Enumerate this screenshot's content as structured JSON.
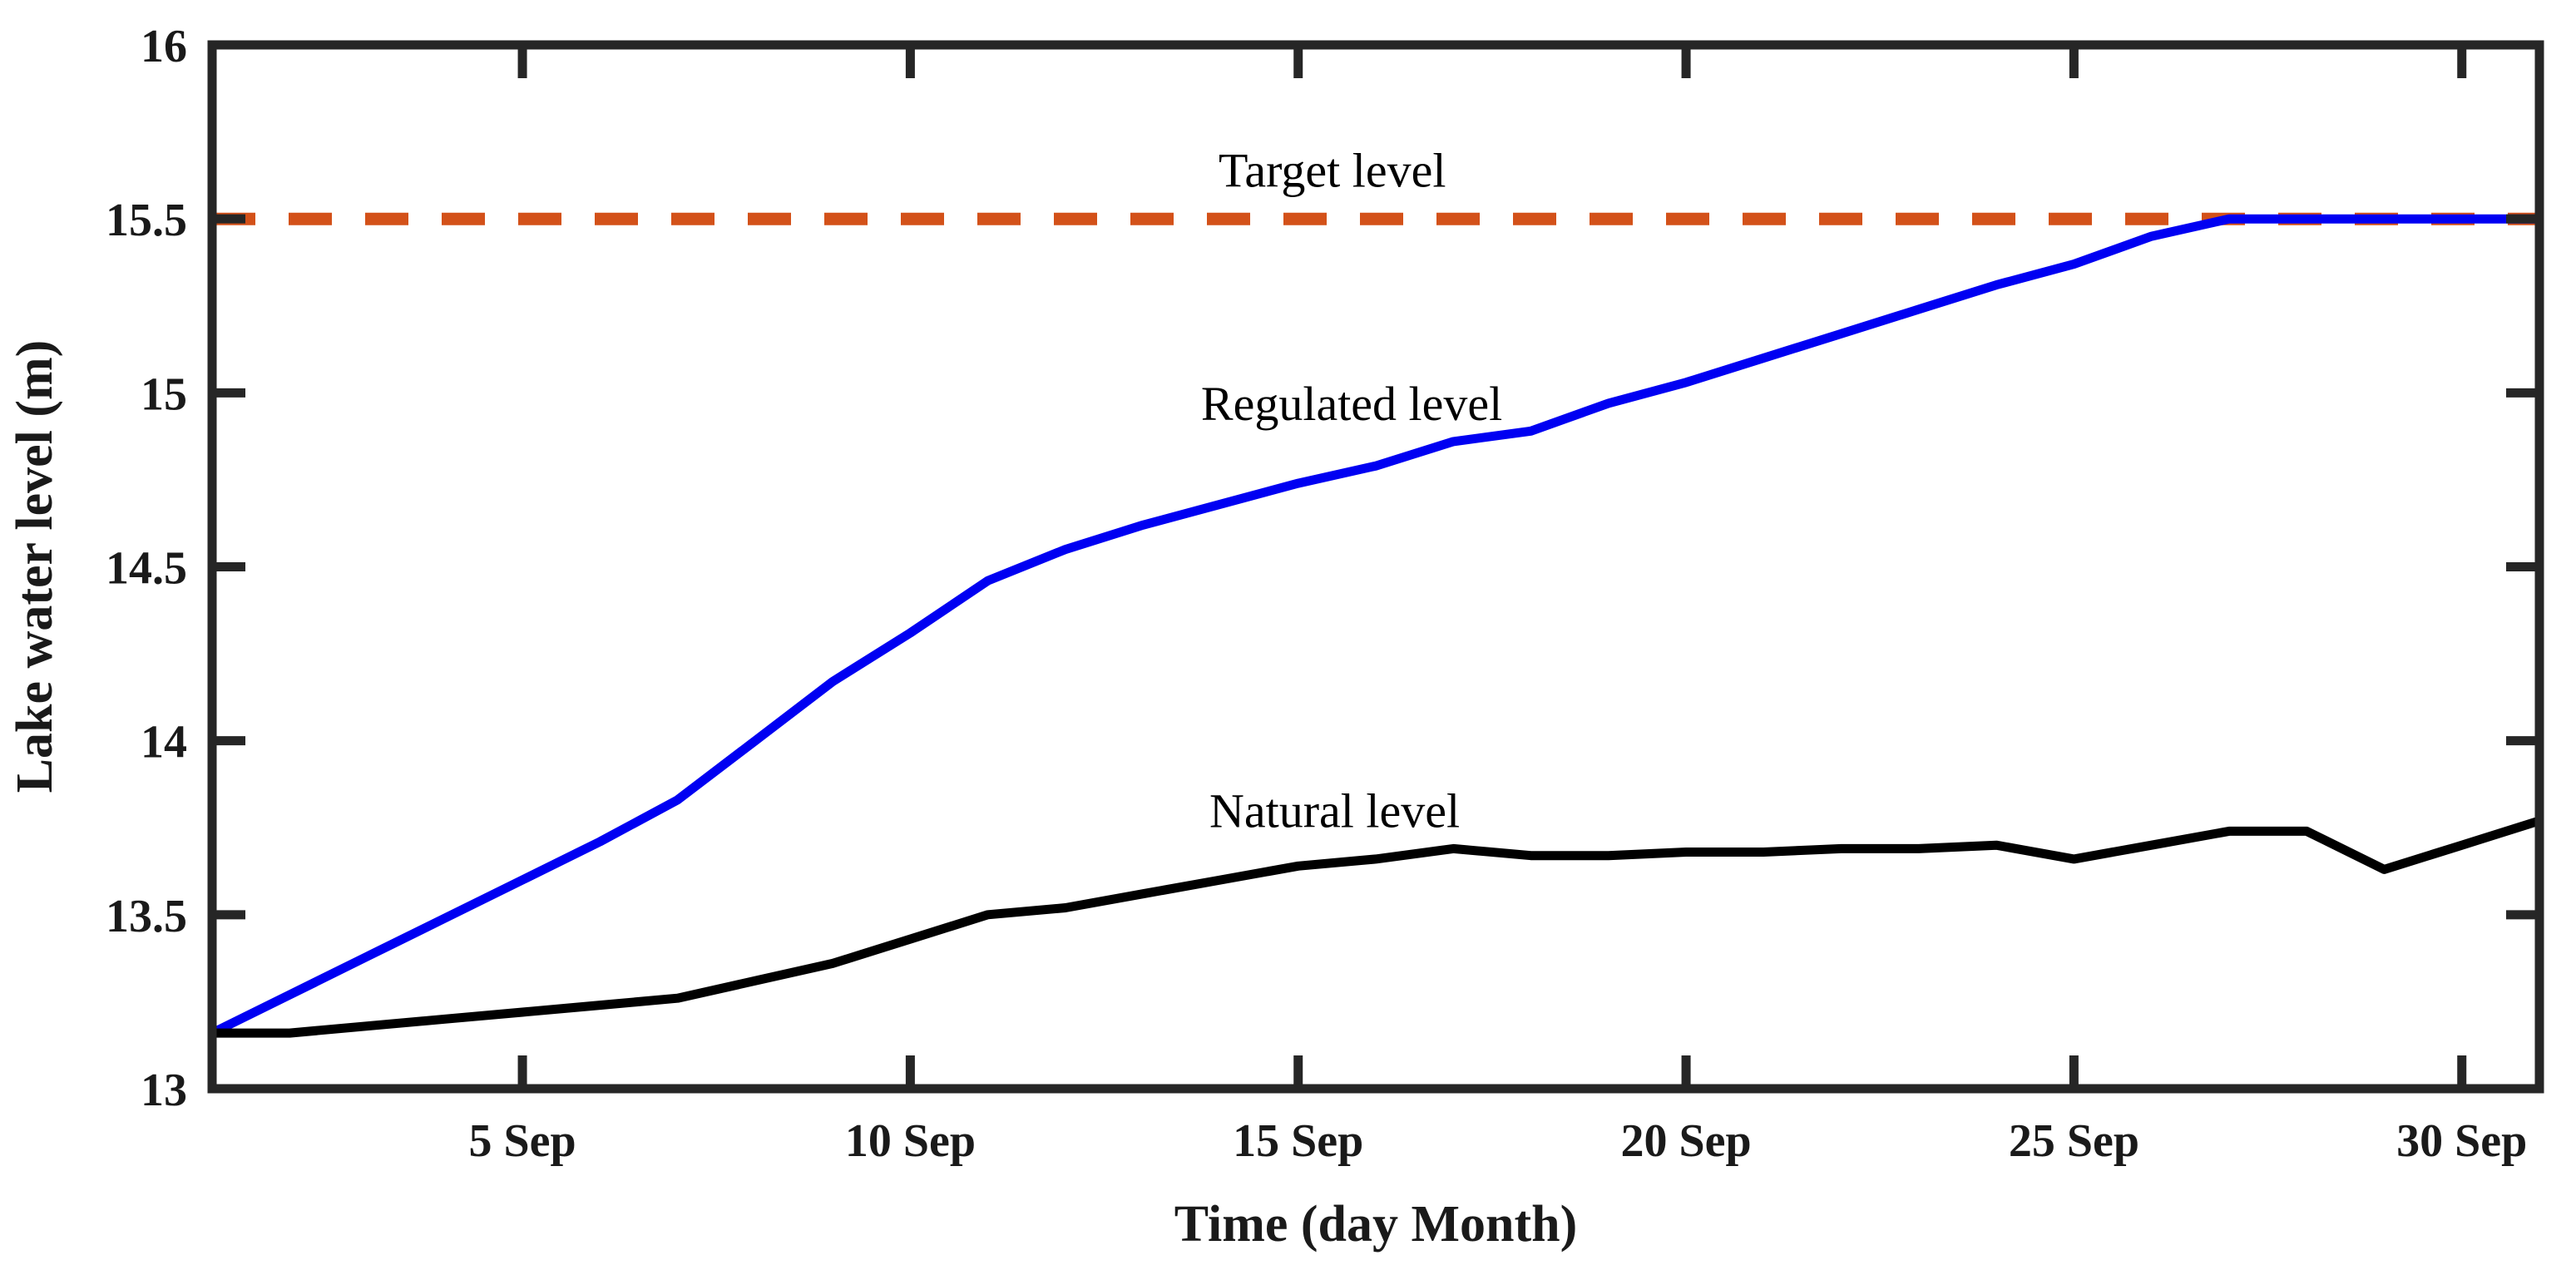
{
  "chart_data": {
    "type": "line",
    "title": "",
    "xlabel": "Time (day Month)",
    "ylabel": "Lake water level (m)",
    "xlim": [
      1,
      31
    ],
    "ylim": [
      13,
      16
    ],
    "grid": false,
    "legend_position": "none (inline text annotations)",
    "x_days_september": [
      1,
      2,
      3,
      4,
      5,
      6,
      7,
      8,
      9,
      10,
      11,
      12,
      13,
      14,
      15,
      16,
      17,
      18,
      19,
      20,
      21,
      22,
      23,
      24,
      25,
      26,
      27,
      28,
      29,
      30,
      31
    ],
    "x_ticks": [
      {
        "day": 5,
        "label": "5 Sep"
      },
      {
        "day": 10,
        "label": "10 Sep"
      },
      {
        "day": 15,
        "label": "15 Sep"
      },
      {
        "day": 20,
        "label": "20 Sep"
      },
      {
        "day": 25,
        "label": "25 Sep"
      },
      {
        "day": 30,
        "label": "30 Sep"
      }
    ],
    "y_ticks": [
      {
        "value": 13,
        "label": "13"
      },
      {
        "value": 13.5,
        "label": "13.5"
      },
      {
        "value": 14,
        "label": "14"
      },
      {
        "value": 14.5,
        "label": "14.5"
      },
      {
        "value": 15,
        "label": "15"
      },
      {
        "value": 15.5,
        "label": "15.5"
      },
      {
        "value": 16,
        "label": "16"
      }
    ],
    "series": [
      {
        "name": "Target level",
        "color": "#d35119",
        "style": "dashed",
        "stroke_width": 15,
        "values": [
          15.5,
          15.5,
          15.5,
          15.5,
          15.5,
          15.5,
          15.5,
          15.5,
          15.5,
          15.5,
          15.5,
          15.5,
          15.5,
          15.5,
          15.5,
          15.5,
          15.5,
          15.5,
          15.5,
          15.5,
          15.5,
          15.5,
          15.5,
          15.5,
          15.5,
          15.5,
          15.5,
          15.5,
          15.5,
          15.5,
          15.5
        ]
      },
      {
        "name": "Regulated level",
        "color": "#0000f2",
        "style": "solid",
        "stroke_width": 11,
        "values": [
          13.16,
          13.27,
          13.38,
          13.49,
          13.6,
          13.71,
          13.83,
          14.0,
          14.17,
          14.31,
          14.46,
          14.55,
          14.62,
          14.68,
          14.74,
          14.79,
          14.86,
          14.89,
          14.97,
          15.03,
          15.1,
          15.17,
          15.24,
          15.31,
          15.37,
          15.45,
          15.5,
          15.5,
          15.5,
          15.5,
          15.5
        ]
      },
      {
        "name": "Natural level",
        "color": "#000000",
        "style": "solid",
        "stroke_width": 11,
        "values": [
          13.16,
          13.16,
          13.18,
          13.2,
          13.22,
          13.24,
          13.26,
          13.31,
          13.36,
          13.43,
          13.5,
          13.52,
          13.56,
          13.6,
          13.64,
          13.66,
          13.69,
          13.67,
          13.67,
          13.68,
          13.68,
          13.69,
          13.69,
          13.7,
          13.66,
          13.7,
          13.74,
          13.74,
          13.63,
          13.7,
          13.77
        ]
      }
    ],
    "annotations": [
      {
        "text": "Target level",
        "day": 15.44,
        "value": 15.64
      },
      {
        "text": "Regulated level",
        "day": 15.69,
        "value": 14.97
      },
      {
        "text": "Natural level",
        "day": 15.47,
        "value": 13.8
      }
    ],
    "dash_pattern": [
      52,
      40
    ]
  },
  "layout_note": "single MATLAB-style line chart, black box axes, ticks inward on all four sides"
}
